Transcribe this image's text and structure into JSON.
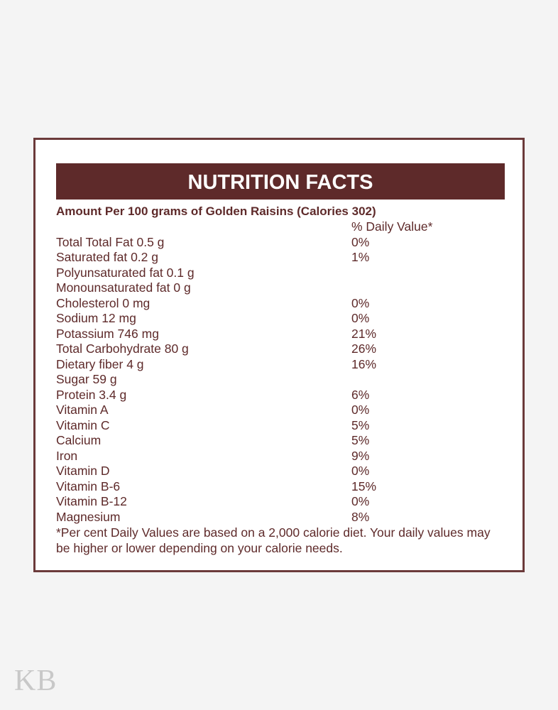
{
  "label": {
    "title": "NUTRITION FACTS",
    "amount_line": "Amount Per 100 grams of Golden Raisins (Calories 302)",
    "daily_value_header": "% Daily Value*",
    "nutrients": [
      {
        "name": "Total Total Fat 0.5 g",
        "dv": "0%"
      },
      {
        "name": "Saturated fat 0.2 g",
        "dv": "1%"
      },
      {
        "name": "Polyunsaturated fat 0.1 g",
        "dv": ""
      },
      {
        "name": "Monounsaturated fat 0 g",
        "dv": ""
      },
      {
        "name": "Cholesterol 0 mg",
        "dv": "0%"
      },
      {
        "name": "Sodium 12 mg",
        "dv": "0%"
      },
      {
        "name": "Potassium 746 mg",
        "dv": "21%"
      },
      {
        "name": "Total Carbohydrate 80 g",
        "dv": "26%"
      },
      {
        "name": "Dietary fiber 4 g",
        "dv": "16%"
      },
      {
        "name": "Sugar 59 g",
        "dv": ""
      },
      {
        "name": "Protein 3.4 g",
        "dv": "6%"
      },
      {
        "name": "Vitamin A",
        "dv": "0%"
      },
      {
        "name": "Vitamin C",
        "dv": "5%"
      },
      {
        "name": "Calcium",
        "dv": "5%"
      },
      {
        "name": "Iron",
        "dv": "9%"
      },
      {
        "name": "Vitamin D",
        "dv": "0%"
      },
      {
        "name": "Vitamin B-6",
        "dv": "15%"
      },
      {
        "name": "Vitamin B-12",
        "dv": "0%"
      },
      {
        "name": "Magnesium",
        "dv": "8%"
      }
    ],
    "footnote": "*Per cent Daily Values are based on a 2,000 calorie diet. Your daily values may be higher or lower depending on your calorie needs."
  },
  "watermark": "KB",
  "colors": {
    "accent": "#5e2a2a",
    "border": "#6b3a3a",
    "background": "#f4f4f4",
    "card": "#ffffff",
    "watermark": "#c8c8c8"
  }
}
